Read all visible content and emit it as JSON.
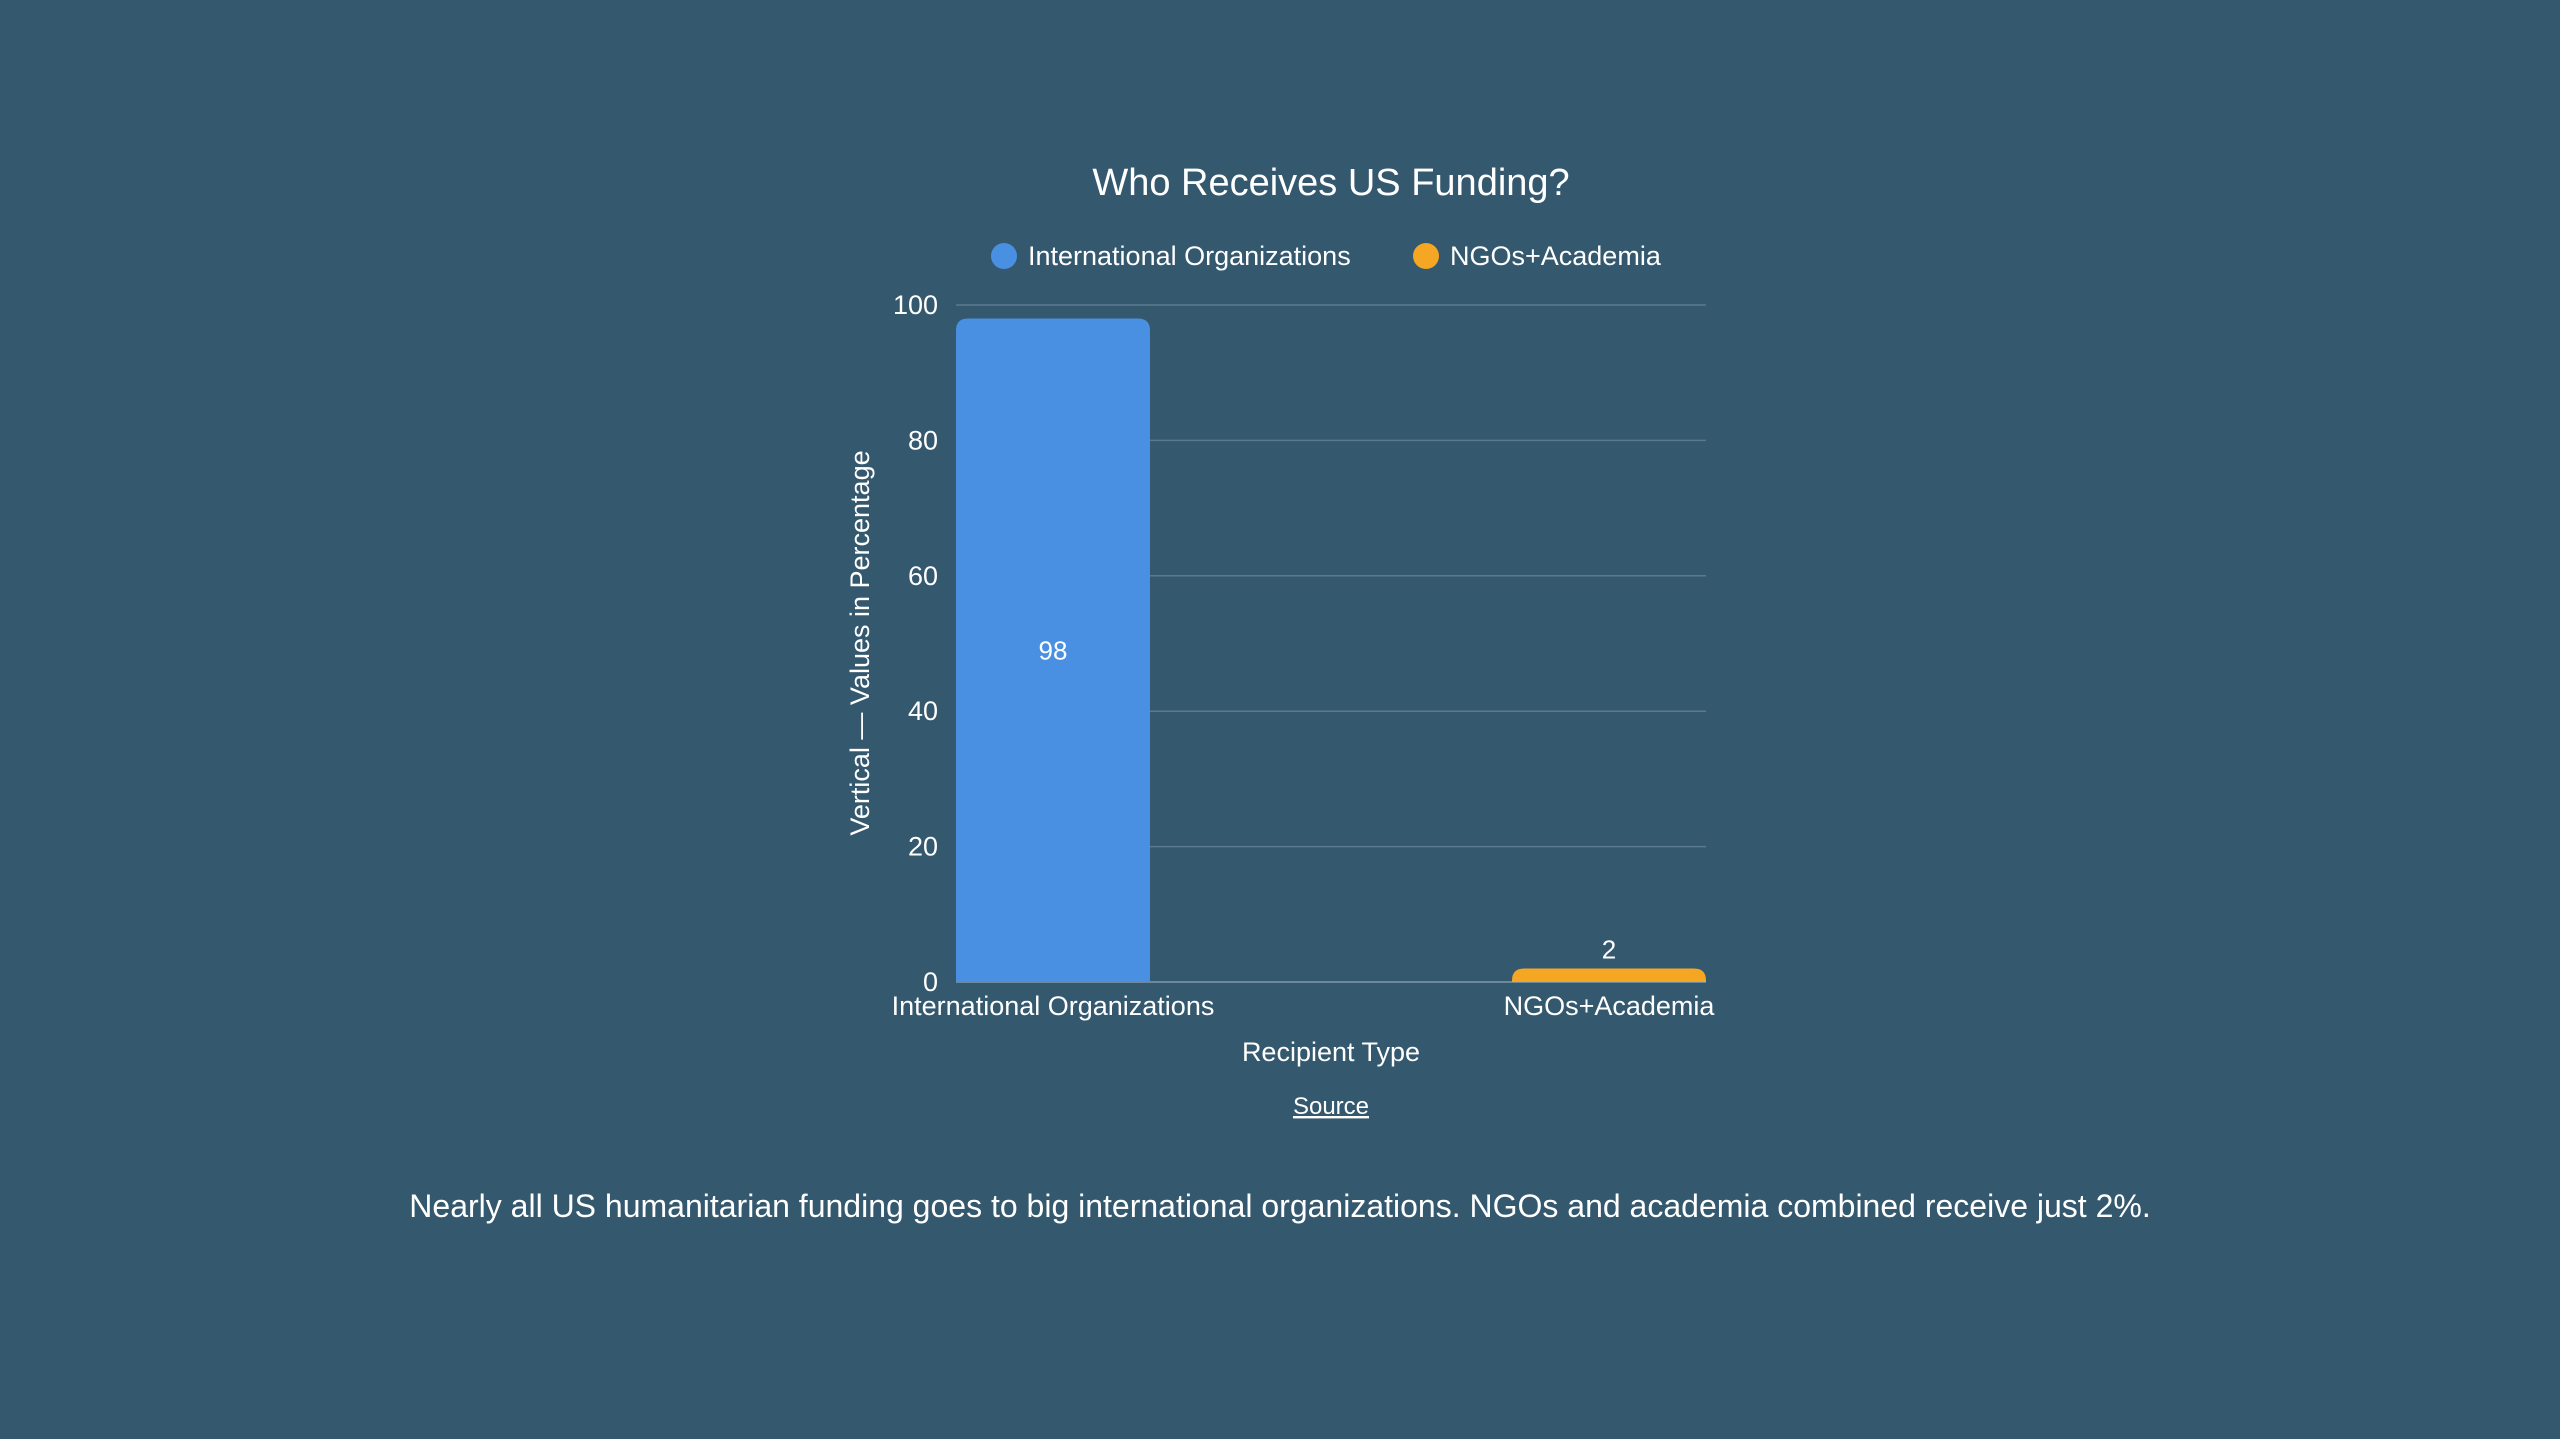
{
  "page": {
    "background": "#34586e",
    "caption": "Nearly all US humanitarian funding goes to big international organizations. NGOs and academia combined receive just 2%."
  },
  "chart_data": {
    "type": "bar",
    "title": "Who Receives US Funding?",
    "xlabel": "Recipient Type",
    "ylabel": "Vertical — Values in Percentage",
    "categories": [
      "International Organizations",
      "NGOs+Academia"
    ],
    "series": [
      {
        "name": "International Organizations",
        "color": "#4a90e2",
        "values": [
          98,
          null
        ]
      },
      {
        "name": "NGOs+Academia",
        "color": "#f5a623",
        "values": [
          null,
          2
        ]
      }
    ],
    "ylim": [
      0,
      100
    ],
    "yticks": [
      0,
      20,
      40,
      60,
      80,
      100
    ],
    "grid": true,
    "legend": "top-center",
    "data_labels": true,
    "source_label": "Source"
  }
}
